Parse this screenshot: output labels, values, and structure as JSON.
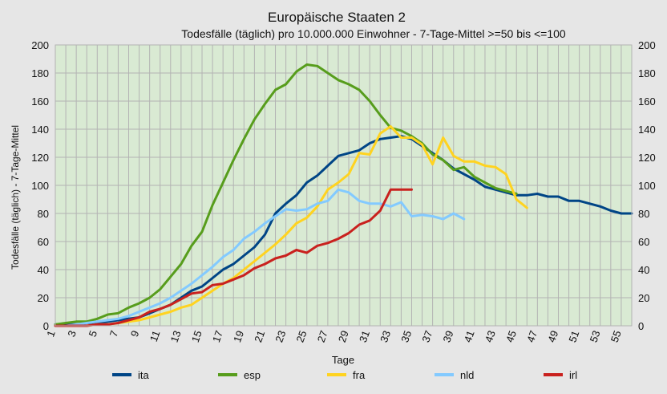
{
  "chart_data": {
    "type": "line",
    "title": "Europäische Staaten 2",
    "subtitle": "Todesfälle (täglich) pro 10.000.000 Einwohner - 7-Tage-Mittel >=50 bis <=100",
    "xlabel": "Tage",
    "ylabel": "Todesfälle (täglich) - 7-Tage-Mittel",
    "xlim": [
      1,
      56
    ],
    "ylim": [
      0,
      200
    ],
    "x_ticks": [
      1,
      3,
      5,
      7,
      9,
      11,
      13,
      15,
      17,
      19,
      21,
      23,
      25,
      27,
      29,
      31,
      33,
      35,
      37,
      39,
      41,
      43,
      45,
      47,
      49,
      51,
      53,
      55
    ],
    "y_ticks": [
      0,
      20,
      40,
      60,
      80,
      100,
      120,
      140,
      160,
      180,
      200
    ],
    "grid": true,
    "legend_position": "bottom",
    "plot_background": "#d9ead3",
    "series": [
      {
        "name": "ita",
        "color": "#004586",
        "x": [
          1,
          2,
          3,
          4,
          5,
          6,
          7,
          8,
          9,
          10,
          11,
          12,
          13,
          14,
          15,
          16,
          17,
          18,
          19,
          20,
          21,
          22,
          23,
          24,
          25,
          26,
          27,
          28,
          29,
          30,
          31,
          32,
          33,
          34,
          35,
          36,
          37,
          38,
          39,
          40,
          41,
          42,
          43,
          44,
          45,
          46,
          47,
          48,
          49,
          50,
          51,
          52,
          53,
          54,
          55,
          56
        ],
        "values": [
          1,
          1,
          1,
          2,
          2,
          3,
          4,
          5,
          6,
          9,
          12,
          15,
          20,
          25,
          28,
          34,
          40,
          44,
          50,
          56,
          65,
          80,
          87,
          93,
          102,
          107,
          114,
          121,
          123,
          125,
          130,
          133,
          134,
          135,
          133,
          128,
          123,
          118,
          112,
          108,
          104,
          99,
          97,
          95,
          93,
          93,
          94,
          92,
          92,
          89,
          89,
          87,
          85,
          82,
          80,
          80
        ]
      },
      {
        "name": "esp",
        "color": "#579d1c",
        "x": [
          1,
          2,
          3,
          4,
          5,
          6,
          7,
          8,
          9,
          10,
          11,
          12,
          13,
          14,
          15,
          16,
          17,
          18,
          19,
          20,
          21,
          22,
          23,
          24,
          25,
          26,
          27,
          28,
          29,
          30,
          31,
          32,
          33,
          34,
          35,
          36,
          37,
          38,
          39,
          40,
          41,
          42,
          43,
          44,
          45
        ],
        "values": [
          1,
          2,
          3,
          3,
          5,
          8,
          9,
          13,
          16,
          20,
          26,
          35,
          44,
          57,
          67,
          86,
          102,
          118,
          133,
          147,
          158,
          168,
          172,
          181,
          186,
          185,
          180,
          175,
          172,
          168,
          160,
          150,
          141,
          139,
          135,
          130,
          122,
          118,
          111,
          113,
          106,
          102,
          98,
          96,
          94
        ]
      },
      {
        "name": "fra",
        "color": "#ffd320",
        "x": [
          1,
          2,
          3,
          4,
          5,
          6,
          7,
          8,
          9,
          10,
          11,
          12,
          13,
          14,
          15,
          16,
          17,
          18,
          19,
          20,
          21,
          22,
          23,
          24,
          25,
          26,
          27,
          28,
          29,
          30,
          31,
          32,
          33,
          34,
          35,
          36,
          37,
          38,
          39,
          40,
          41,
          42,
          43,
          44,
          45,
          46
        ],
        "values": [
          0,
          0,
          0,
          0,
          1,
          1,
          2,
          3,
          4,
          6,
          8,
          10,
          13,
          15,
          20,
          25,
          30,
          34,
          40,
          46,
          52,
          58,
          65,
          73,
          77,
          85,
          97,
          102,
          108,
          123,
          122,
          137,
          142,
          134,
          134,
          129,
          115,
          134,
          121,
          117,
          117,
          114,
          113,
          108,
          90,
          84
        ]
      },
      {
        "name": "nld",
        "color": "#83caff",
        "x": [
          1,
          2,
          3,
          4,
          5,
          6,
          7,
          8,
          9,
          10,
          11,
          12,
          13,
          14,
          15,
          16,
          17,
          18,
          19,
          20,
          21,
          22,
          23,
          24,
          25,
          26,
          27,
          28,
          29,
          30,
          31,
          32,
          33,
          34,
          35,
          36,
          37,
          38,
          39,
          40
        ],
        "values": [
          0,
          0,
          1,
          2,
          3,
          4,
          5,
          7,
          10,
          13,
          16,
          20,
          25,
          30,
          36,
          42,
          49,
          54,
          62,
          67,
          73,
          78,
          83,
          82,
          83,
          87,
          89,
          97,
          95,
          89,
          87,
          87,
          85,
          88,
          78,
          79,
          78,
          76,
          80,
          76
        ]
      },
      {
        "name": "irl",
        "color": "#c9211e",
        "x": [
          1,
          2,
          3,
          4,
          5,
          6,
          7,
          8,
          9,
          10,
          11,
          12,
          13,
          14,
          15,
          16,
          17,
          18,
          19,
          20,
          21,
          22,
          23,
          24,
          25,
          26,
          27,
          28,
          29,
          30,
          31,
          32,
          33,
          34,
          35
        ],
        "values": [
          0,
          0,
          0,
          0,
          1,
          1,
          2,
          4,
          6,
          10,
          12,
          15,
          19,
          23,
          24,
          29,
          30,
          33,
          36,
          41,
          44,
          48,
          50,
          54,
          52,
          57,
          59,
          62,
          66,
          72,
          75,
          82,
          97,
          97,
          97
        ]
      }
    ]
  }
}
